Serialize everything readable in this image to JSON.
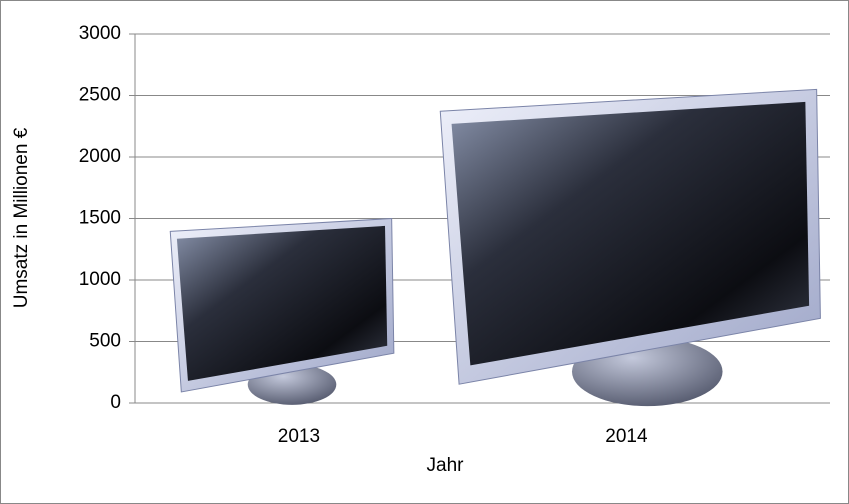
{
  "chart_data": {
    "type": "pictograph",
    "x_label": "Jahr",
    "y_label": "Umsatz in Millionen €",
    "categories": [
      "2013",
      "2014"
    ],
    "values": [
      1500,
      2550
    ],
    "ylim": [
      0,
      3000
    ],
    "yticks": [
      0,
      500,
      1000,
      1500,
      2000,
      2500,
      3000
    ],
    "grid": true
  }
}
